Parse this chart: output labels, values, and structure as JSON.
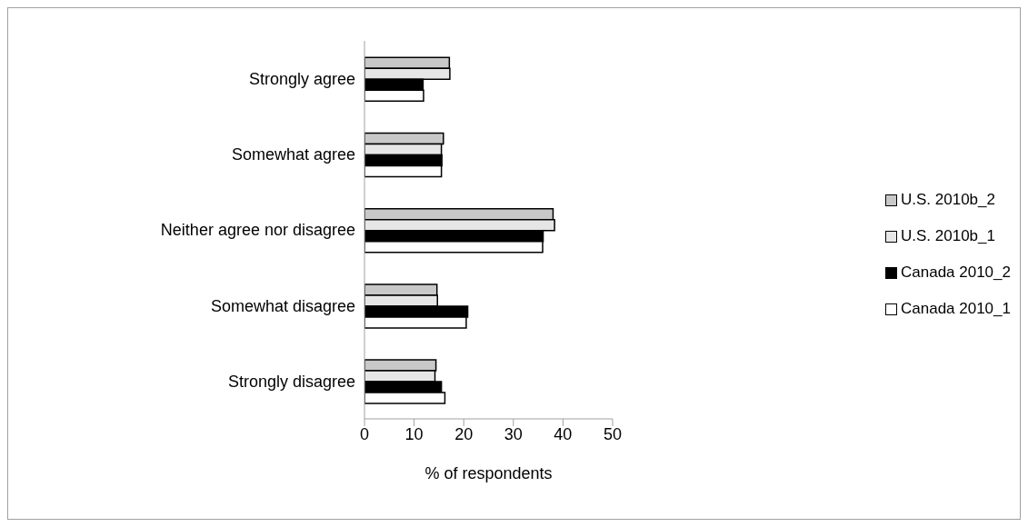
{
  "chart_data": {
    "type": "bar",
    "orientation": "horizontal",
    "xlabel": "% of respondents",
    "categories": [
      "Strongly agree",
      "Somewhat agree",
      "Neither agree nor disagree",
      "Somewhat disagree",
      "Strongly disagree"
    ],
    "series": [
      {
        "name": "U.S. 2010b_2",
        "color": "#c8c8c8",
        "values": [
          17.1,
          15.9,
          38.0,
          14.6,
          14.4
        ]
      },
      {
        "name": "U.S. 2010b_1",
        "color": "#e6e6e6",
        "values": [
          17.2,
          15.5,
          38.3,
          14.7,
          14.2
        ]
      },
      {
        "name": "Canada 2010_2",
        "color": "#000000",
        "values": [
          11.8,
          15.6,
          36.0,
          20.8,
          15.5
        ]
      },
      {
        "name": "Canada 2010_1",
        "color": "#ffffff",
        "values": [
          11.9,
          15.5,
          35.9,
          20.5,
          16.2
        ]
      }
    ],
    "xlim": [
      0,
      50
    ],
    "xticks": [
      0,
      10,
      20,
      30,
      40,
      50
    ],
    "grid": false,
    "legend": "right"
  }
}
